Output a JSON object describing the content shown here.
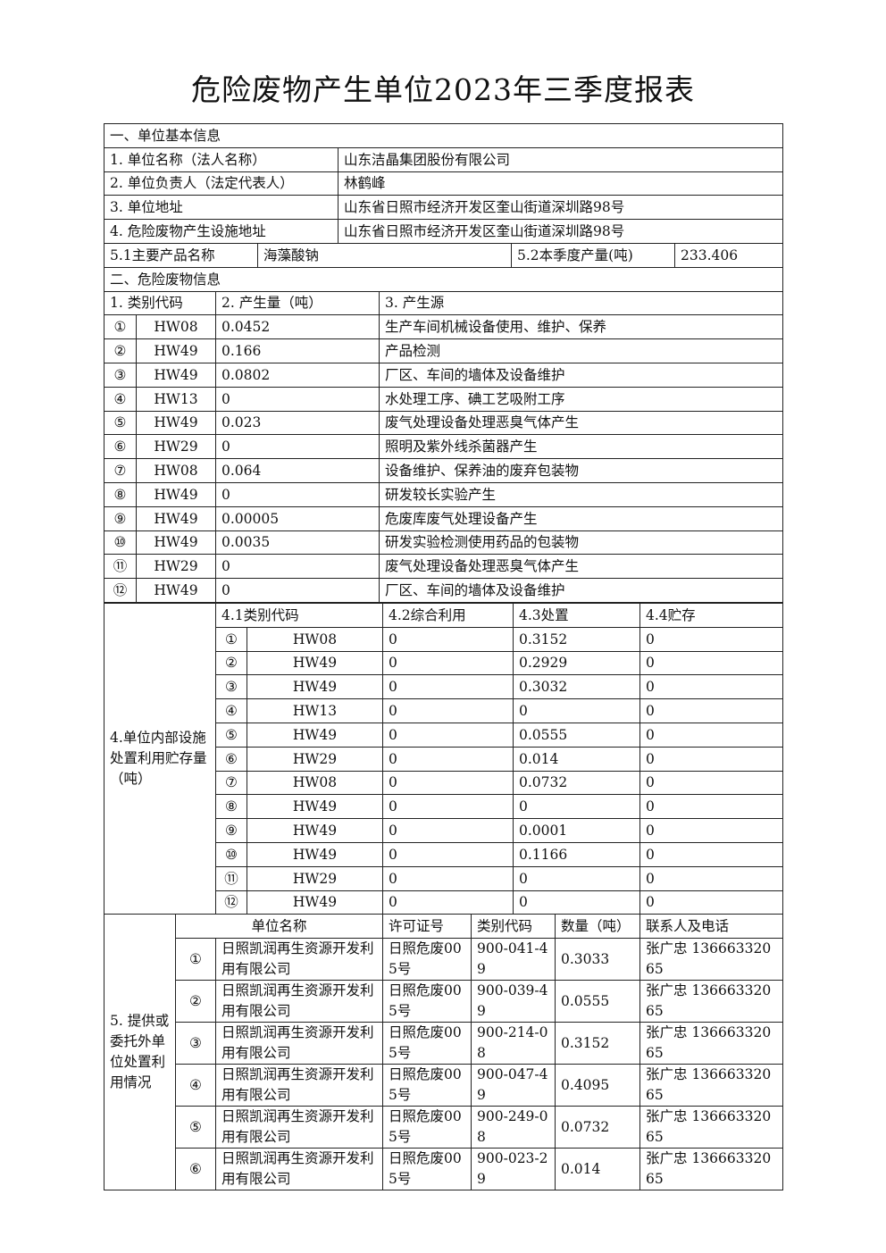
{
  "title": "危险废物产生单位2023年三季度报表",
  "basic": {
    "section": "一、单位基本信息",
    "rows": [
      {
        "label": "1. 单位名称（法人名称）",
        "value": "山东洁晶集团股份有限公司"
      },
      {
        "label": "2. 单位负责人（法定代表人）",
        "value": "林鹤峰"
      },
      {
        "label": "3. 单位地址",
        "value": "山东省日照市经济开发区奎山街道深圳路98号"
      },
      {
        "label": "4. 危险废物产生设施地址",
        "value": "山东省日照市经济开发区奎山街道深圳路98号"
      }
    ],
    "product_label": "5.1主要产品名称",
    "product": "海藻酸钠",
    "output_label": "5.2本季度产量(吨)",
    "output": "233.406"
  },
  "waste": {
    "section": "二、危险废物信息",
    "headers": [
      "1. 类别代码",
      "2. 产生量（吨）",
      "3. 产生源"
    ],
    "rows": [
      [
        "①",
        "HW08",
        "0.0452",
        "生产车间机械设备使用、维护、保养"
      ],
      [
        "②",
        "HW49",
        "0.166",
        "产品检测"
      ],
      [
        "③",
        "HW49",
        "0.0802",
        "厂区、车间的墙体及设备维护"
      ],
      [
        "④",
        "HW13",
        "0",
        "水处理工序、碘工艺吸附工序"
      ],
      [
        "⑤",
        "HW49",
        "0.023",
        "废气处理设备处理恶臭气体产生"
      ],
      [
        "⑥",
        "HW29",
        "0",
        "照明及紫外线杀菌器产生"
      ],
      [
        "⑦",
        "HW08",
        "0.064",
        "设备维护、保养油的废弃包装物"
      ],
      [
        "⑧",
        "HW49",
        "0",
        "研发较长实验产生"
      ],
      [
        "⑨",
        "HW49",
        "0.00005",
        "危废库废气处理设备产生"
      ],
      [
        "⑩",
        "HW49",
        "0.0035",
        "研发实验检测使用药品的包装物"
      ],
      [
        "⑪",
        "HW29",
        "0",
        "废气处理设备处理恶臭气体产生"
      ],
      [
        "⑫",
        "HW49",
        "0",
        "厂区、车间的墙体及设备维护"
      ]
    ]
  },
  "internal": {
    "label": "4.单位内部设施处置利用贮存量（吨）",
    "headers": [
      "4.1类别代码",
      "4.2综合利用",
      "4.3处置",
      "4.4贮存"
    ],
    "rows": [
      [
        "①",
        "HW08",
        "0",
        "0.3152",
        "0"
      ],
      [
        "②",
        "HW49",
        "0",
        "0.2929",
        "0"
      ],
      [
        "③",
        "HW49",
        "0",
        "0.3032",
        "0"
      ],
      [
        "④",
        "HW13",
        "0",
        "0",
        "0"
      ],
      [
        "⑤",
        "HW49",
        "0",
        "0.0555",
        "0"
      ],
      [
        "⑥",
        "HW29",
        "0",
        "0.014",
        "0"
      ],
      [
        "⑦",
        "HW08",
        "0",
        "0.0732",
        "0"
      ],
      [
        "⑧",
        "HW49",
        "0",
        "0",
        "0"
      ],
      [
        "⑨",
        "HW49",
        "0",
        "0.0001",
        "0"
      ],
      [
        "⑩",
        "HW49",
        "0",
        "0.1166",
        "0"
      ],
      [
        "⑪",
        "HW29",
        "0",
        "0",
        "0"
      ],
      [
        "⑫",
        "HW49",
        "0",
        "0",
        "0"
      ]
    ]
  },
  "external": {
    "label": "5. 提供或委托外单位处置利用情况",
    "headers": [
      "单位名称",
      "许可证号",
      "类别代码",
      "数量（吨）",
      "联系人及电话"
    ],
    "rows": [
      [
        "①",
        "日照凯润再生资源开发利用有限公司",
        "日照危废005号",
        "900-041-49",
        "0.3033",
        "张广忠 13666332065"
      ],
      [
        "②",
        "日照凯润再生资源开发利用有限公司",
        "日照危废005号",
        "900-039-49",
        "0.0555",
        "张广忠 13666332065"
      ],
      [
        "③",
        "日照凯润再生资源开发利用有限公司",
        "日照危废005号",
        "900-214-08",
        "0.3152",
        "张广忠 13666332065"
      ],
      [
        "④",
        "日照凯润再生资源开发利用有限公司",
        "日照危废005号",
        "900-047-49",
        "0.4095",
        "张广忠 13666332065"
      ],
      [
        "⑤",
        "日照凯润再生资源开发利用有限公司",
        "日照危废005号",
        "900-249-08",
        "0.0732",
        "张广忠 13666332065"
      ],
      [
        "⑥",
        "日照凯润再生资源开发利用有限公司",
        "日照危废005号",
        "900-023-29",
        "0.014",
        "张广忠 13666332065"
      ]
    ]
  }
}
